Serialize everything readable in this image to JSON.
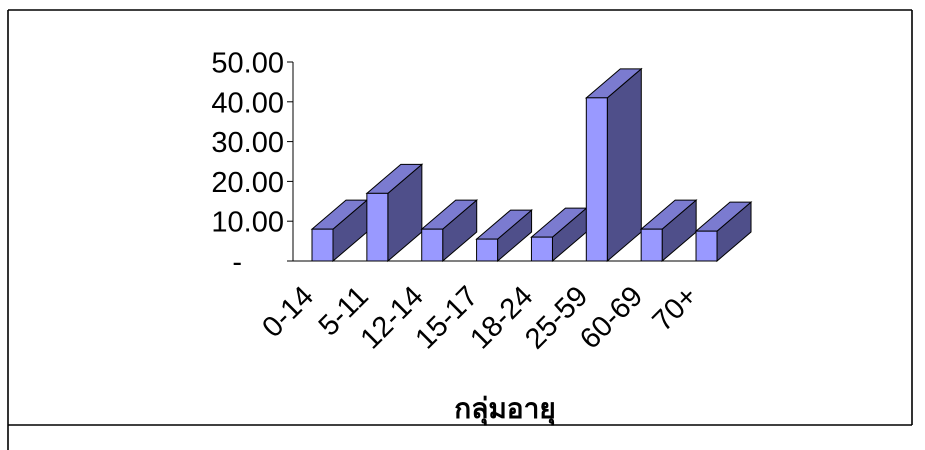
{
  "chart_data": {
    "type": "bar",
    "three_d": true,
    "categories": [
      "0-14",
      "5-11",
      "12-14",
      "15-17",
      "18-24",
      "25-59",
      "60-69",
      "70+"
    ],
    "values": [
      8.0,
      17.0,
      8.0,
      5.5,
      6.0,
      41.0,
      8.0,
      7.5
    ],
    "xlabel": "กลุ่มอายุ",
    "ylabel": "",
    "ylim": [
      0,
      50
    ],
    "yticks": [
      0,
      10,
      20,
      30,
      40,
      50
    ],
    "ytick_labels": [
      "-",
      "10.00",
      "20.00",
      "30.00",
      "40.00",
      "50.00"
    ],
    "grid": false,
    "legend": "none",
    "colors": {
      "front": "#9999ff",
      "side": "#4f4f8a",
      "top": "#7b7bd0",
      "outline": "#000000"
    }
  }
}
